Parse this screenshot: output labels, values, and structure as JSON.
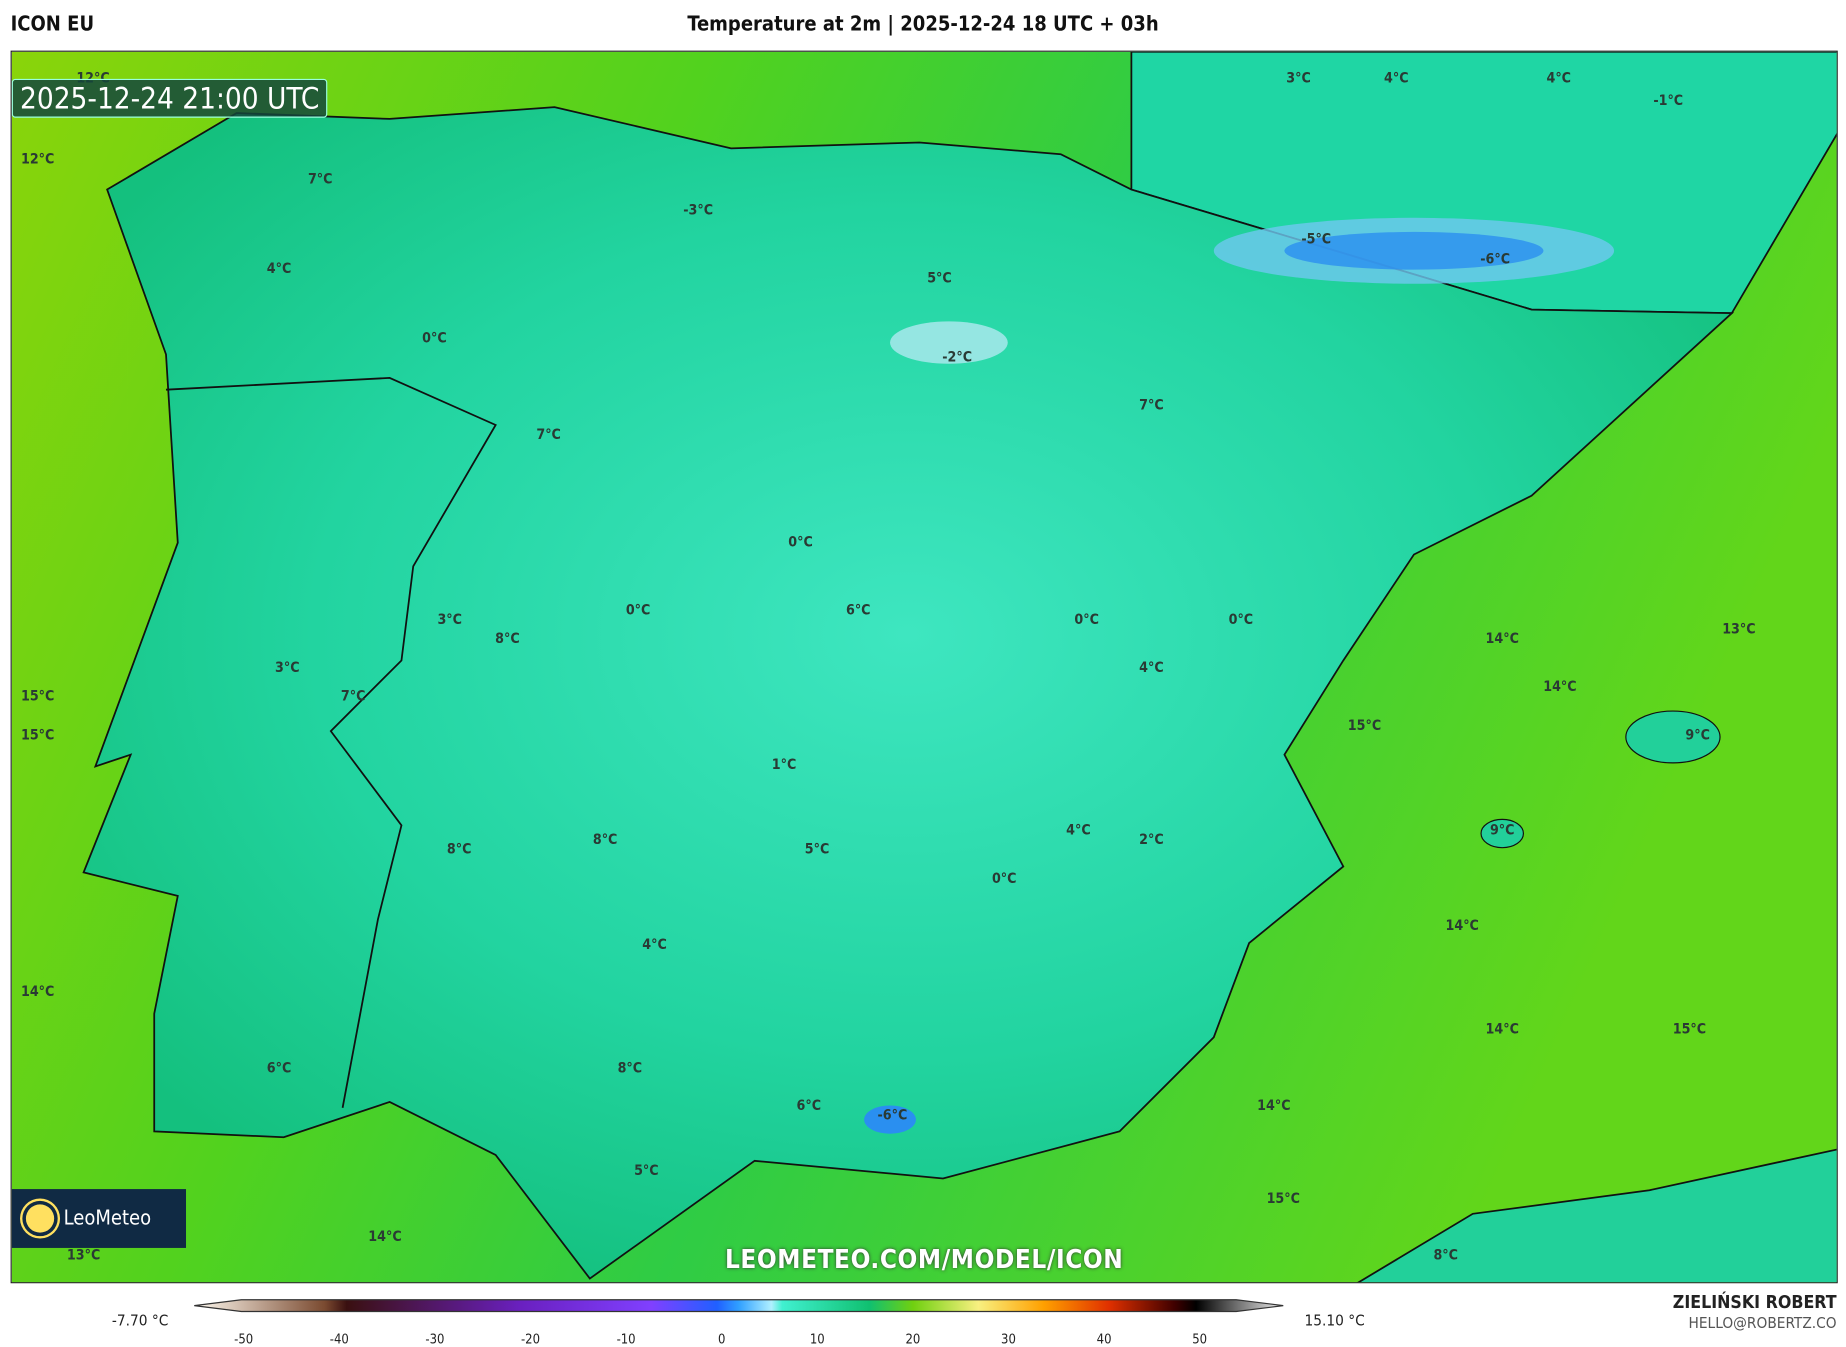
{
  "header": {
    "model": "ICON EU",
    "title": "Temperature at 2m | 2025-12-24 18 UTC + 03h"
  },
  "map": {
    "timestamp": "2025-12-24 21:00 UTC",
    "watermark": "LEOMETEO.COM/MODEL/ICON",
    "logo": "LeoMeteo",
    "labels": [
      "12°C",
      "12°C",
      "7°C",
      "4°C",
      "0°C",
      "-3°C",
      "5°C",
      "-2°C",
      "3°C",
      "4°C",
      "4°C",
      "-1°C",
      "-5°C",
      "-6°C",
      "7°C",
      "7°C",
      "0°C",
      "0°C",
      "6°C",
      "0°C",
      "0°C",
      "3°C",
      "8°C",
      "4°C",
      "3°C",
      "7°C",
      "15°C",
      "15°C",
      "14°C",
      "13°C",
      "14°C",
      "15°C",
      "9°C",
      "1°C",
      "8°C",
      "8°C",
      "5°C",
      "4°C",
      "2°C",
      "0°C",
      "9°C",
      "14°C",
      "4°C",
      "14°C",
      "14°C",
      "15°C",
      "6°C",
      "8°C",
      "6°C",
      "-6°C",
      "14°C",
      "5°C",
      "15°C",
      "14°C",
      "13°C",
      "8°C"
    ],
    "colors": {
      "land": "#22d6a0",
      "sea": "#7fd40a",
      "cold": "#2a8ff0"
    }
  },
  "colorbar": {
    "min_label": "-7.70 °C",
    "max_label": "15.10 °C",
    "ticks": [
      "-50",
      "-40",
      "-30",
      "-20",
      "-10",
      "0",
      "10",
      "20",
      "30",
      "40",
      "50"
    ]
  },
  "credit": {
    "name": "ZIELIŃSKI ROBERT",
    "email": "HELLO@ROBERTZ.CO"
  }
}
